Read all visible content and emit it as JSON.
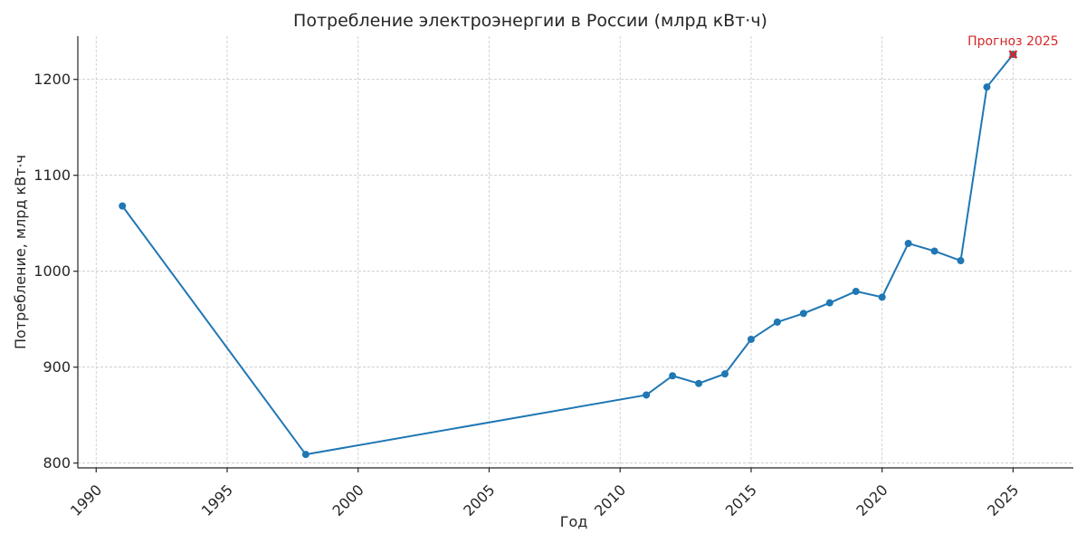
{
  "chart_data": {
    "type": "line",
    "title": "Потребление электроэнергии в России (млрд кВт·ч)",
    "xlabel": "Год",
    "ylabel": "Потребление, млрд кВт·ч",
    "xlim": [
      1989.3,
      1926.7
    ],
    "ylim": [
      795,
      1245
    ],
    "xticks": [
      1990,
      1995,
      2000,
      2005,
      2010,
      2015,
      2020,
      2025
    ],
    "yticks": [
      800,
      900,
      1000,
      1100,
      1200
    ],
    "grid": true,
    "series": [
      {
        "color": "#1f77b4",
        "x": [
          1991,
          1998,
          2011,
          2012,
          2013,
          2014,
          2015,
          2016,
          2017,
          2018,
          2019,
          2020,
          2021,
          2022,
          2023,
          2024,
          2025
        ],
        "y": [
          1068,
          809,
          871,
          891,
          883,
          893,
          929,
          947,
          956,
          967,
          979,
          973,
          1029,
          1021,
          1011,
          1192,
          1226
        ]
      }
    ],
    "annotations": [
      {
        "x": 2025,
        "y": 1226,
        "text": "Прогноз 2025",
        "color": "#d62728",
        "marker": "x"
      }
    ]
  }
}
